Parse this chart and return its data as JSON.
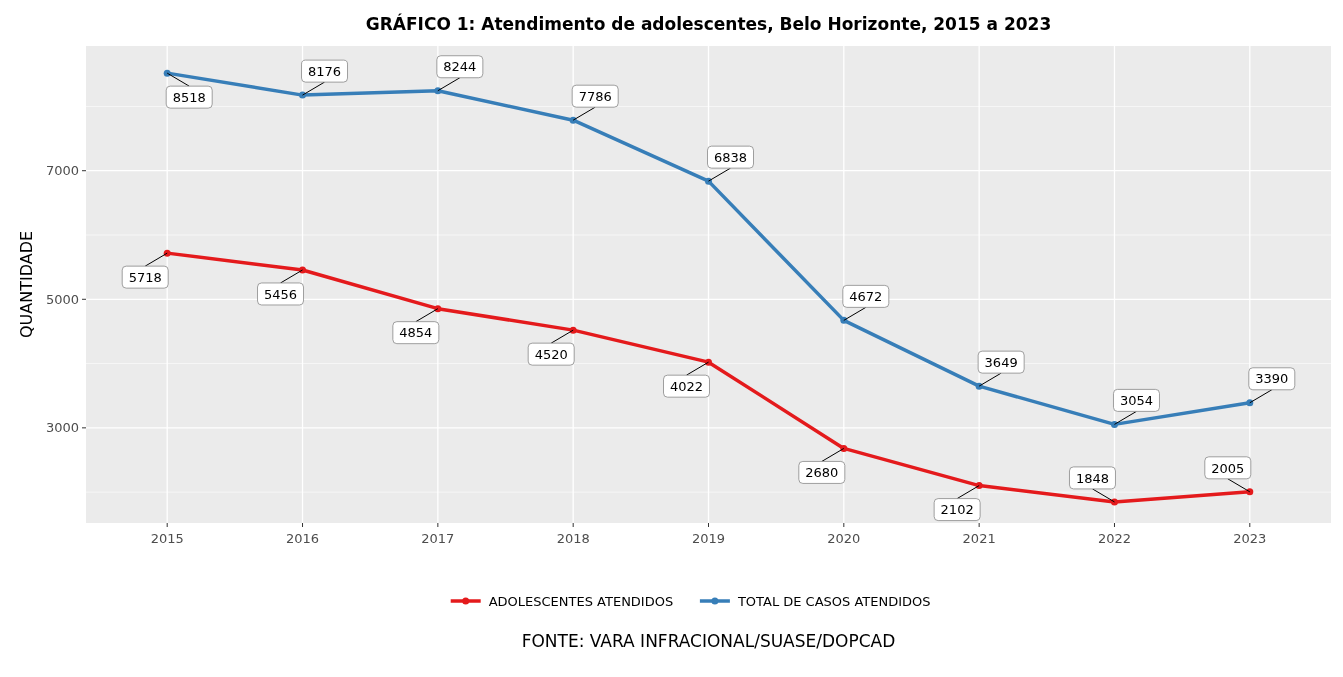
{
  "chart_data": {
    "type": "line",
    "title": "GRÁFICO 1: Atendimento de adolescentes, Belo Horizonte, 2015 a 2023",
    "ylabel": "QUANTIDADE",
    "categories": [
      "2015",
      "2016",
      "2017",
      "2018",
      "2019",
      "2020",
      "2021",
      "2022",
      "2023"
    ],
    "series": [
      {
        "name": "ADOLESCENTES ATENDIDOS",
        "color": "#e41a1c",
        "values": [
          5718,
          5456,
          4854,
          4520,
          4022,
          2680,
          2102,
          1848,
          2005
        ]
      },
      {
        "name": "TOTAL DE CASOS ATENDIDOS",
        "color": "#377eb8",
        "values": [
          8518,
          8176,
          8244,
          7786,
          6838,
          4672,
          3649,
          3054,
          3390
        ]
      }
    ],
    "ylim": [
      1520,
      8940
    ],
    "yticks": [
      3000,
      5000,
      7000
    ],
    "grid": true,
    "legend": "bottom",
    "marker": "circle",
    "data_labels": true,
    "annotations": [
      "FONTE: VARA INFRACIONAL/SUASE/DOPCAD"
    ]
  }
}
